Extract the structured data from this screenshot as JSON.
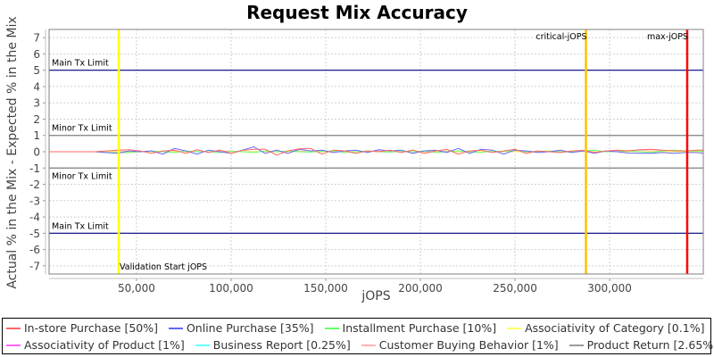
{
  "chart_data": {
    "type": "line",
    "title": "Request Mix Accuracy",
    "xlabel": "jOPS",
    "ylabel": "Actual % in the Mix - Expected % in the Mix",
    "xlim": [
      3800,
      349500
    ],
    "ylim": [
      -7.5,
      7.5
    ],
    "xticks": [
      50000,
      100000,
      150000,
      200000,
      250000,
      300000
    ],
    "xtick_labels": [
      "50,000",
      "100,000",
      "150,000",
      "200,000",
      "250,000",
      "300,000"
    ],
    "yticks": [
      7,
      6,
      5,
      4,
      3,
      2,
      1,
      0,
      -1,
      -2,
      -3,
      -4,
      -5,
      -6,
      -7
    ],
    "grid": true,
    "legend_position": "bottom",
    "reference_lines_horizontal": [
      {
        "label": "Main Tx Limit",
        "y": 5,
        "color": "#000080"
      },
      {
        "label": "Minor Tx Limit",
        "y": 1,
        "color": "#808080"
      },
      {
        "label": "Minor Tx Limit",
        "y": -1,
        "color": "#808080"
      },
      {
        "label": "Main Tx Limit",
        "y": -5,
        "color": "#000080"
      }
    ],
    "reference_lines_vertical": [
      {
        "label": "Validation Start jOPS",
        "x": 40600,
        "color": "#ffff00"
      },
      {
        "label": "critical-jOPS",
        "x": 287500,
        "color": "#ffc000"
      },
      {
        "label": "max-jOPS",
        "x": 341000,
        "color": "#ff0000"
      }
    ],
    "x": [
      3800,
      10000,
      16000,
      22000,
      28000,
      34000,
      40000,
      46000,
      52000,
      58000,
      64000,
      70000,
      76000,
      82000,
      88000,
      94000,
      100000,
      106000,
      112000,
      118000,
      124000,
      130000,
      136000,
      142000,
      148000,
      154000,
      160000,
      166000,
      172000,
      178000,
      184000,
      190000,
      196000,
      202000,
      208000,
      214000,
      220000,
      226000,
      232000,
      238000,
      244000,
      250000,
      256000,
      262000,
      268000,
      274000,
      280000,
      286000,
      292000,
      298000,
      304000,
      310000,
      316000,
      322000,
      328000,
      334000,
      340000,
      346000,
      349500
    ],
    "series": [
      {
        "name": "In-store Purchase [50%]",
        "color": "#ff6666",
        "values": [
          0,
          0,
          0,
          0,
          0,
          0.05,
          0.1,
          0.12,
          0.05,
          -0.1,
          0.05,
          0.1,
          -0.1,
          0.12,
          -0.05,
          0.1,
          -0.1,
          0.08,
          0.15,
          0.15,
          -0.2,
          0.05,
          0.18,
          0.2,
          -0.15,
          0.1,
          0.05,
          -0.1,
          0.05,
          0,
          0.1,
          -0.05,
          0.1,
          -0.1,
          0.05,
          0.15,
          -0.15,
          0.05,
          0.1,
          -0.05,
          0.05,
          0.15,
          -0.1,
          0.05,
          0,
          -0.05,
          0.05,
          0.08,
          -0.05,
          0.05,
          0.1,
          0.05,
          0.12,
          0.15,
          0.1,
          0.05,
          0.05,
          0.1,
          0.1
        ]
      },
      {
        "name": "Online Purchase [35%]",
        "color": "#6666ff",
        "values": [
          0,
          0,
          0,
          0,
          0,
          -0.05,
          -0.1,
          0.05,
          0,
          0.05,
          -0.15,
          0.2,
          0.05,
          -0.15,
          0.1,
          0,
          -0.1,
          0.1,
          0.3,
          -0.1,
          0.1,
          -0.1,
          0.15,
          0.05,
          0.1,
          -0.05,
          0.05,
          0.1,
          -0.05,
          0.12,
          0.05,
          0.1,
          -0.1,
          0.05,
          0.1,
          -0.05,
          0.2,
          -0.1,
          0.15,
          0.1,
          -0.15,
          0.1,
          0.05,
          -0.05,
          0,
          0.1,
          -0.05,
          0.05,
          -0.1,
          0.05,
          0,
          -0.08,
          -0.1,
          -0.1,
          -0.05,
          -0.1,
          -0.05,
          -0.05,
          -0.1
        ]
      },
      {
        "name": "Installment Purchase [10%]",
        "color": "#66ff66",
        "values": [
          0,
          0,
          0,
          0,
          0,
          -0.05,
          -0.05,
          -0.05,
          0,
          0.05,
          0,
          -0.05,
          0.05,
          0,
          0,
          -0.05,
          0.02,
          0,
          -0.05,
          0.05,
          0,
          0.05,
          0,
          -0.02,
          0.02,
          0.05,
          -0.05,
          0,
          0.05,
          0,
          -0.02,
          0.02,
          0,
          0.05,
          -0.05,
          0,
          0.05,
          0,
          -0.05,
          0.05,
          0,
          0.1,
          0,
          0.02,
          0.05,
          0,
          -0.02,
          0.05,
          0.1,
          0,
          0,
          0.05,
          0,
          -0.05,
          0.05,
          0.1,
          0.05,
          0.05,
          0.02
        ]
      },
      {
        "name": "Associativity of Category [0.1%]",
        "color": "#ffff66",
        "values": [
          0,
          0,
          0,
          0,
          0,
          0,
          0,
          0,
          0,
          0,
          0,
          0,
          0,
          0,
          0,
          0,
          0,
          0,
          0,
          0,
          0,
          0,
          0,
          0,
          0,
          0,
          0,
          0,
          0,
          0,
          0,
          0,
          0,
          0,
          0,
          0,
          0,
          0,
          0,
          0,
          0,
          0,
          0,
          0,
          0,
          0,
          0,
          0,
          0,
          0,
          0,
          0,
          0,
          0,
          0,
          0,
          0,
          0,
          0
        ]
      },
      {
        "name": "Associativity of Product [1%]",
        "color": "#ff66ff",
        "values": [
          0,
          0,
          0,
          0,
          0,
          0,
          0,
          0,
          0,
          0,
          0,
          0,
          0,
          0,
          0,
          0,
          0,
          0,
          0,
          0,
          0,
          0,
          0,
          0,
          0,
          0,
          0,
          0,
          0,
          0,
          0,
          0,
          0,
          0,
          0,
          0,
          0,
          0,
          0,
          0,
          0,
          0,
          0,
          0,
          0,
          0,
          0,
          0,
          0,
          0,
          0,
          0,
          0,
          0,
          0,
          0,
          0,
          0,
          0
        ]
      },
      {
        "name": "Business Report [0.25%]",
        "color": "#66ffff",
        "values": [
          0,
          0,
          0,
          0,
          0,
          0,
          0,
          0,
          0,
          0,
          0,
          0,
          0,
          0,
          0,
          0,
          0,
          0,
          0,
          0,
          0,
          0,
          0,
          0,
          0,
          0,
          0,
          0,
          0,
          0,
          0,
          0,
          0,
          0,
          0,
          0,
          0,
          0,
          0,
          0,
          0,
          0,
          0,
          0,
          0,
          0,
          0,
          0,
          0,
          0,
          0,
          0,
          0,
          0,
          0,
          0,
          0,
          0,
          0
        ]
      },
      {
        "name": "Customer Buying Behavior [1%]",
        "color": "#ffb3b3",
        "values": [
          0,
          0,
          0,
          0,
          0,
          0.02,
          0.05,
          0.02,
          0,
          0.02,
          0,
          0.05,
          0,
          0.02,
          0,
          0.02,
          0.05,
          0,
          0.02,
          0,
          0.02,
          0,
          0.05,
          0,
          0.02,
          0,
          0.02,
          0,
          0.02,
          0.05,
          0,
          0.02,
          0,
          0.02,
          0,
          0.05,
          0,
          0.02,
          0,
          0.02,
          0,
          0.05,
          0,
          0.02,
          0,
          0.02,
          0,
          0.05,
          0,
          0.02,
          0.05,
          0.08,
          0.1,
          0.05,
          0.08,
          0.1,
          0.05,
          0.05,
          0.05
        ]
      },
      {
        "name": "Product Return [2.65%]",
        "color": "#999999",
        "values": [
          0,
          0,
          0,
          0,
          0,
          0,
          0,
          0,
          0,
          0,
          0,
          0,
          0,
          0,
          0,
          0,
          0,
          0,
          0,
          0,
          0,
          0,
          0,
          0,
          0,
          0,
          0,
          0,
          0,
          0,
          0,
          0,
          0,
          0,
          0,
          0,
          0,
          0,
          0,
          0,
          0,
          0,
          0,
          0,
          0,
          0,
          0,
          0,
          0,
          0,
          0,
          0,
          0,
          0,
          0,
          0,
          0,
          0,
          0
        ]
      }
    ]
  },
  "legend": {
    "row1": [
      {
        "label": "In-store Purchase [50%]",
        "color": "#ff6666"
      },
      {
        "label": "Online Purchase [35%]",
        "color": "#6666ff"
      },
      {
        "label": "Installment Purchase [10%]",
        "color": "#66ff66"
      },
      {
        "label": "Associativity of Category [0.1%]",
        "color": "#ffff66"
      }
    ],
    "row2": [
      {
        "label": "Associativity of Product [1%]",
        "color": "#ff66ff"
      },
      {
        "label": "Business Report [0.25%]",
        "color": "#66ffff"
      },
      {
        "label": "Customer Buying Behavior [1%]",
        "color": "#ffb3b3"
      },
      {
        "label": "Product Return [2.65%]",
        "color": "#999999"
      }
    ]
  }
}
